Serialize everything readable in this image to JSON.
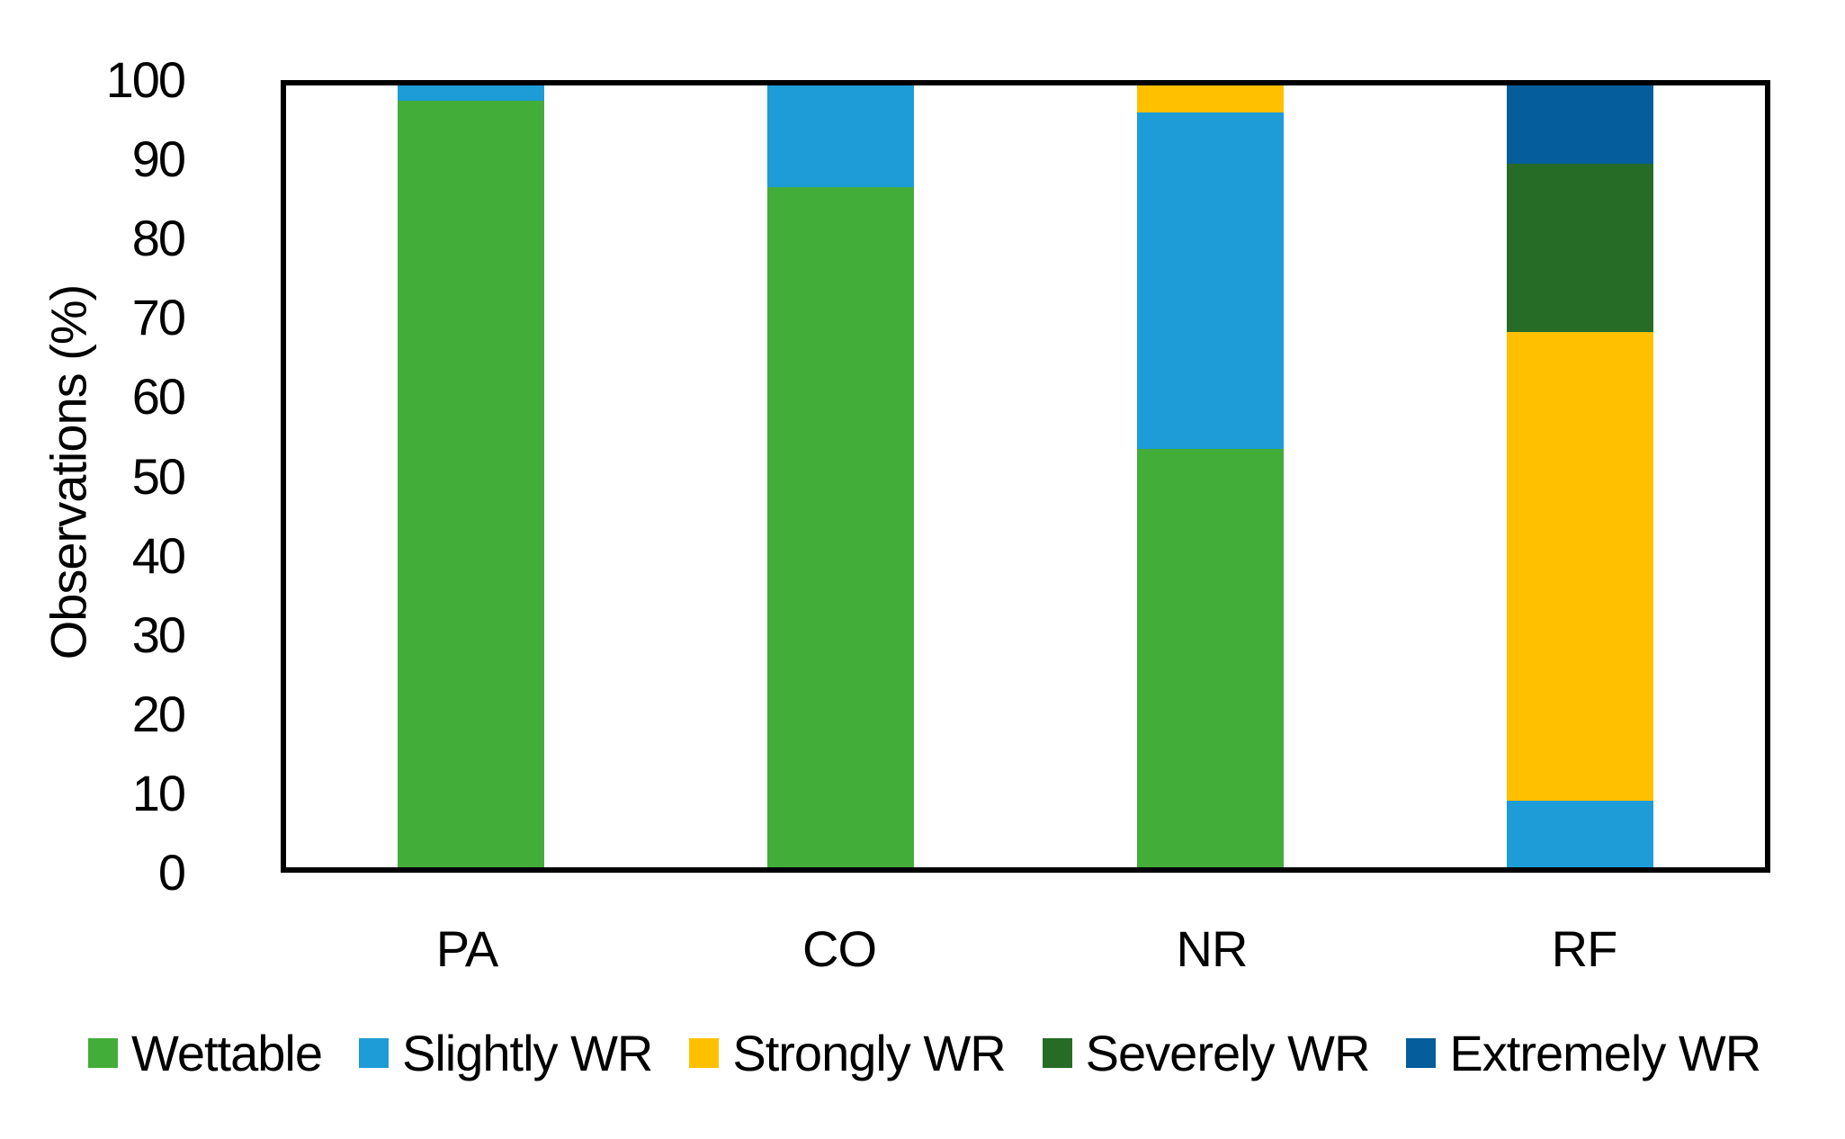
{
  "chart_data": {
    "type": "bar",
    "stacked": true,
    "orientation": "vertical",
    "title": "",
    "xlabel": "",
    "ylabel": "Observations (%)",
    "ylim": [
      0,
      100
    ],
    "yticks": [
      0,
      10,
      20,
      30,
      40,
      50,
      60,
      70,
      80,
      90,
      100
    ],
    "grid": false,
    "legend_position": "bottom",
    "axis_color": "#000000",
    "categories": [
      "PA",
      "CO",
      "NR",
      "RF"
    ],
    "series": [
      {
        "name": "Wettable",
        "color": "#43AD3A",
        "values": [
          98,
          87,
          53.5,
          0
        ]
      },
      {
        "name": "Slightly WR",
        "color": "#1E9CD7",
        "values": [
          2,
          13,
          43,
          8.5
        ]
      },
      {
        "name": "Strongly WR",
        "color": "#FFC000",
        "values": [
          0,
          0,
          3.5,
          60
        ]
      },
      {
        "name": "Severely WR",
        "color": "#266B26",
        "values": [
          0,
          0,
          0,
          21.5
        ]
      },
      {
        "name": "Extremely WR",
        "color": "#055D9B",
        "values": [
          0,
          0,
          0,
          10
        ]
      }
    ]
  }
}
